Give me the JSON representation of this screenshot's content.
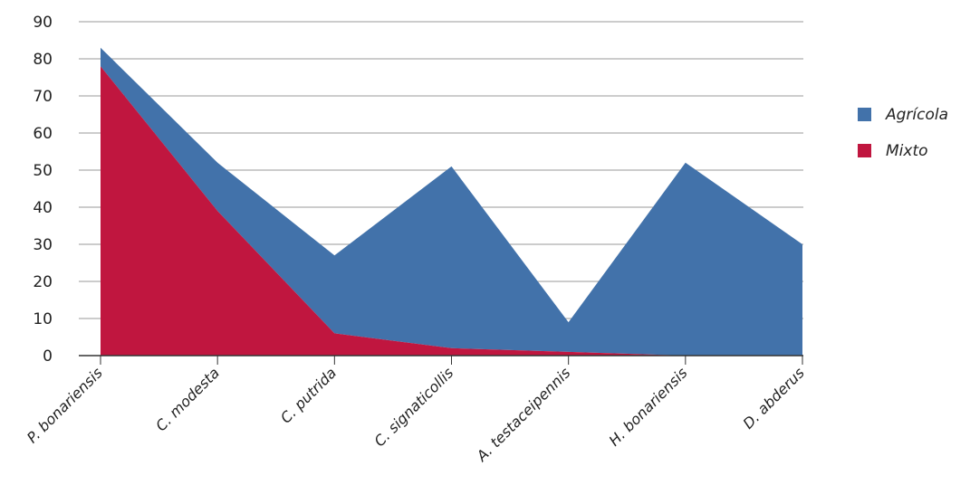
{
  "chart_data": {
    "type": "area",
    "stacked": true,
    "categories": [
      "P. bonariensis",
      "C. modesta",
      "C. putrida",
      "C. signaticollis",
      "A. testaceipennis",
      "H. bonariensis",
      "D. abderus"
    ],
    "series": [
      {
        "name": "Mixto",
        "color": "#c0163f",
        "values": [
          78,
          39,
          6,
          2,
          1,
          0,
          0
        ]
      },
      {
        "name": "Agrícola",
        "color": "#4272aa",
        "values": [
          5,
          13,
          21,
          49,
          8,
          52,
          30
        ]
      }
    ],
    "ylim": [
      0,
      90
    ],
    "yticks": [
      0,
      10,
      20,
      30,
      40,
      50,
      60,
      70,
      80,
      90
    ],
    "grid": true,
    "legend_position": "right",
    "legend_order": [
      "Agrícola",
      "Mixto"
    ]
  }
}
